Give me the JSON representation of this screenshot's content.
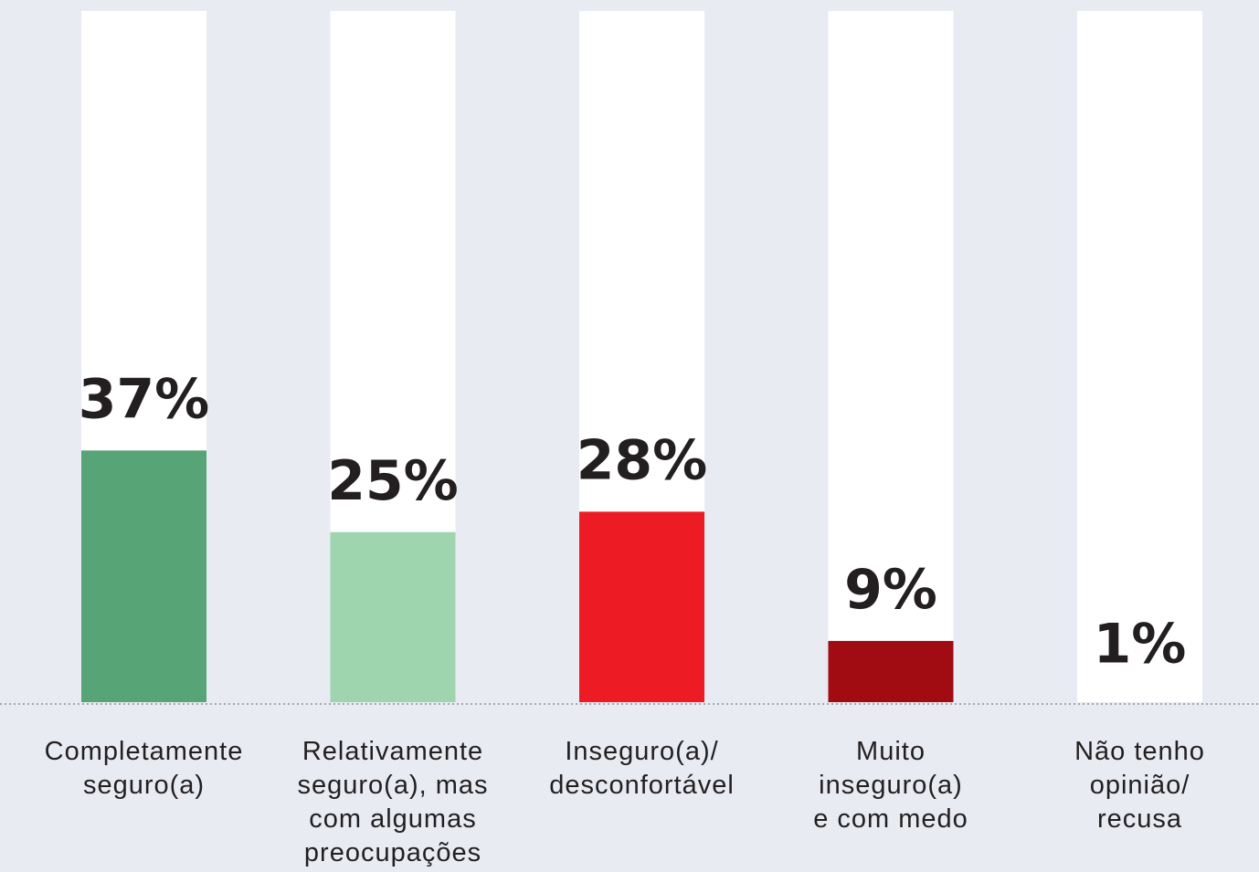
{
  "chart_data": {
    "type": "bar",
    "title": "",
    "xlabel": "",
    "ylabel": "",
    "ylim": [
      0,
      100
    ],
    "grid": false,
    "legend": "none",
    "categories": [
      [
        "Completamente",
        "seguro(a)"
      ],
      [
        "Relativamente",
        "seguro(a), mas",
        "com algumas",
        "preocupações"
      ],
      [
        "Inseguro(a)/",
        "desconfortável"
      ],
      [
        "Muito",
        "inseguro(a)",
        "e com medo"
      ],
      [
        "Não tenho",
        "opinião/",
        "recusa"
      ]
    ],
    "values": [
      37,
      25,
      28,
      9,
      1
    ],
    "value_labels": [
      "37%",
      "25%",
      "28%",
      "9%",
      "1%"
    ],
    "colors": [
      "#57a577",
      "#9ed4ae",
      "#ed1c24",
      "#a00c12",
      "#ffffff"
    ],
    "track_color": "#ffffff",
    "background": "#e8ebf2",
    "baseline_style": "dotted"
  }
}
